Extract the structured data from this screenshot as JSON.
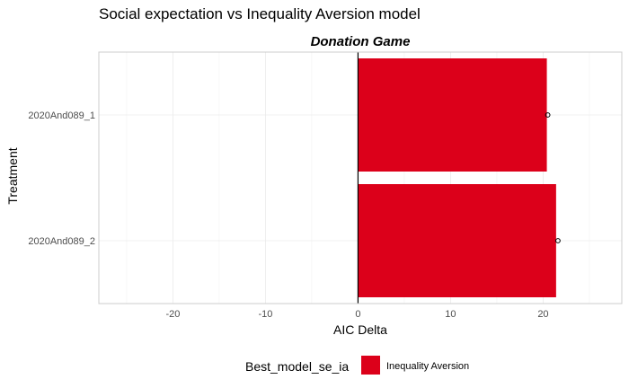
{
  "chart_data": {
    "type": "bar",
    "orientation": "horizontal",
    "title": "Social expectation vs Inequality Aversion model",
    "facet_label": "Donation Game",
    "xlabel": "AIC Delta",
    "ylabel": "Treatment",
    "xlim": [
      -28,
      28.5
    ],
    "x_ticks": [
      -20,
      -10,
      0,
      10,
      20
    ],
    "x_tick_labels": [
      "-20",
      "-10",
      "0",
      "10",
      "20"
    ],
    "categories": [
      "2020And089_1",
      "2020And089_2"
    ],
    "values": [
      20.4,
      21.4
    ],
    "point_values": [
      20.5,
      21.6
    ],
    "bar_fill_category": [
      "Inequality Aversion",
      "Inequality Aversion"
    ],
    "reference_line_x": 0,
    "grid": true,
    "legend": {
      "title": "Best_model_se_ia",
      "position": "bottom",
      "items": [
        {
          "label": "Inequality Aversion",
          "color": "#DC001A"
        }
      ]
    },
    "colors": {
      "bar": "#DC001A",
      "grid": "#ebebeb",
      "panel_border": "#cccccc"
    }
  }
}
